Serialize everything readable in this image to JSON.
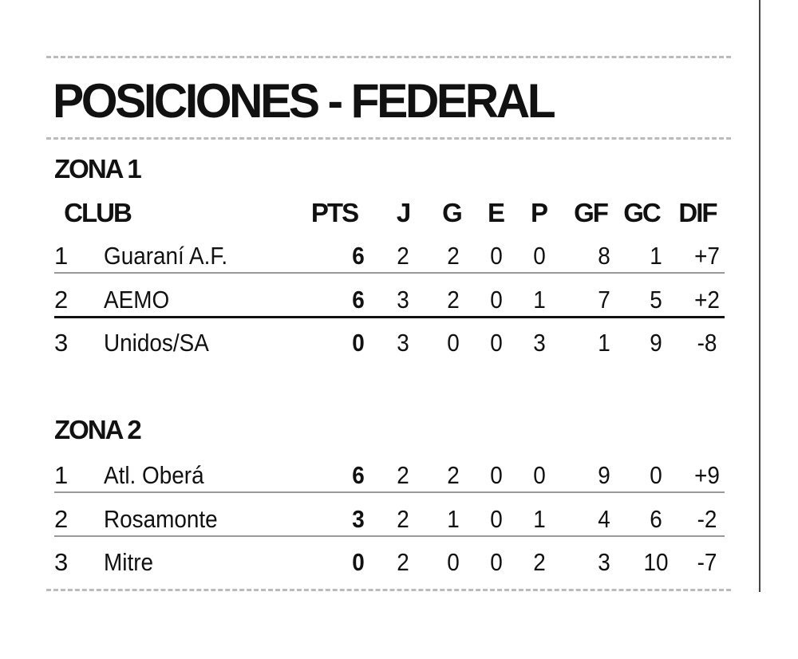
{
  "title": "POSICIONES - FEDERAL",
  "headers": {
    "club": "CLUB",
    "pts": "PTS",
    "j": "J",
    "g": "G",
    "e": "E",
    "p": "P",
    "gf": "GF",
    "gc": "GC",
    "dif": "DIF"
  },
  "zones": [
    {
      "name": "ZONA 1",
      "rows": [
        {
          "pos": "1",
          "club": "Guaraní A.F.",
          "pts": "6",
          "j": "2",
          "g": "2",
          "e": "0",
          "p": "0",
          "gf": "8",
          "gc": "1",
          "dif": "+7"
        },
        {
          "pos": "2",
          "club": "AEMO",
          "pts": "6",
          "j": "3",
          "g": "2",
          "e": "0",
          "p": "1",
          "gf": "7",
          "gc": "5",
          "dif": "+2"
        },
        {
          "pos": "3",
          "club": "Unidos/SA",
          "pts": "0",
          "j": "3",
          "g": "0",
          "e": "0",
          "p": "3",
          "gf": "1",
          "gc": "9",
          "dif": "-8"
        }
      ]
    },
    {
      "name": "ZONA 2",
      "rows": [
        {
          "pos": "1",
          "club": "Atl. Oberá",
          "pts": "6",
          "j": "2",
          "g": "2",
          "e": "0",
          "p": "0",
          "gf": "9",
          "gc": "0",
          "dif": "+9"
        },
        {
          "pos": "2",
          "club": "Rosamonte",
          "pts": "3",
          "j": "2",
          "g": "1",
          "e": "0",
          "p": "1",
          "gf": "4",
          "gc": "6",
          "dif": "-2"
        },
        {
          "pos": "3",
          "club": "Mitre",
          "pts": "0",
          "j": "2",
          "g": "0",
          "e": "0",
          "p": "2",
          "gf": "3",
          "gc": "10",
          "dif": "-7"
        }
      ]
    }
  ]
}
